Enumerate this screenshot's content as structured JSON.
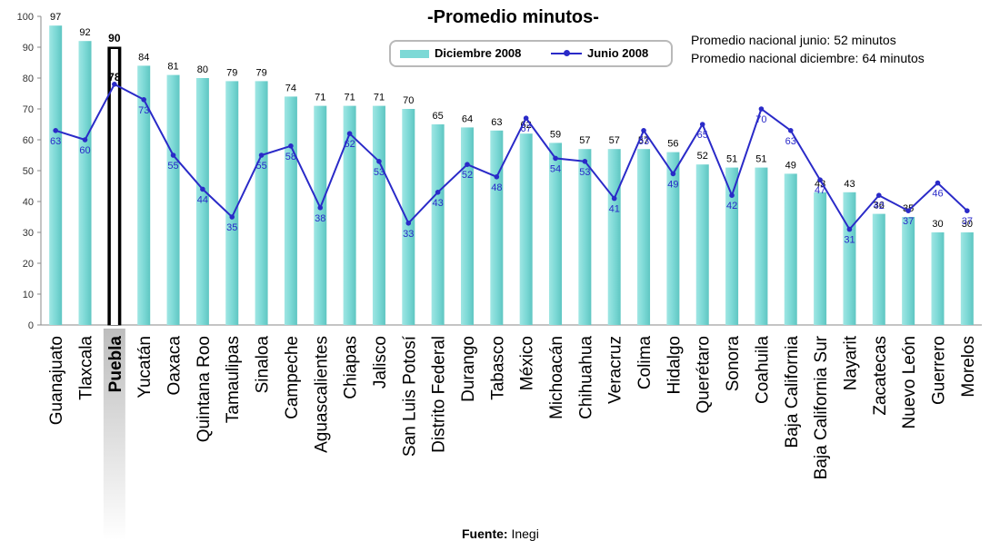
{
  "chart_data": {
    "type": "bar",
    "title": "-Promedio minutos-",
    "notes": [
      "Promedio nacional junio: 52 minutos",
      "Promedio nacional diciembre: 64 minutos"
    ],
    "source_label": "Fuente:",
    "source_value": "Inegi",
    "ylim": [
      0,
      100
    ],
    "yticks": [
      0,
      10,
      20,
      30,
      40,
      50,
      60,
      70,
      80,
      90,
      100
    ],
    "highlight_category": "Puebla",
    "colors": {
      "bar": "#7dd9d6",
      "line": "#2a2ac8",
      "highlight_fill": "#000000"
    },
    "categories": [
      "Guanajuato",
      "Tlaxcala",
      "Puebla",
      "Yucatán",
      "Oaxaca",
      "Quintana Roo",
      "Tamaulipas",
      "Sinaloa",
      "Campeche",
      "Aguascalientes",
      "Chiapas",
      "Jalisco",
      "San Luis Potosí",
      "Distrito Federal",
      "Durango",
      "Tabasco",
      "México",
      "Michoacán",
      "Chihuahua",
      "Veracruz",
      "Colima",
      "Hidalgo",
      "Querétaro",
      "Sonora",
      "Coahuila",
      "Baja California",
      "Baja California Sur",
      "Nayarit",
      "Zacatecas",
      "Nuevo León",
      "Guerrero",
      "Morelos"
    ],
    "series": [
      {
        "name": "Diciembre 2008",
        "type": "bar",
        "values": [
          97,
          92,
          90,
          84,
          81,
          80,
          79,
          79,
          74,
          71,
          71,
          71,
          70,
          65,
          64,
          63,
          62,
          59,
          57,
          57,
          57,
          56,
          52,
          51,
          51,
          49,
          43,
          43,
          36,
          35,
          30,
          30
        ]
      },
      {
        "name": "Junio 2008",
        "type": "line",
        "values": [
          63,
          60,
          78,
          73,
          55,
          44,
          35,
          55,
          58,
          38,
          62,
          53,
          33,
          43,
          52,
          48,
          67,
          54,
          53,
          41,
          63,
          49,
          65,
          42,
          70,
          63,
          47,
          31,
          42,
          37,
          46,
          37
        ]
      }
    ]
  }
}
